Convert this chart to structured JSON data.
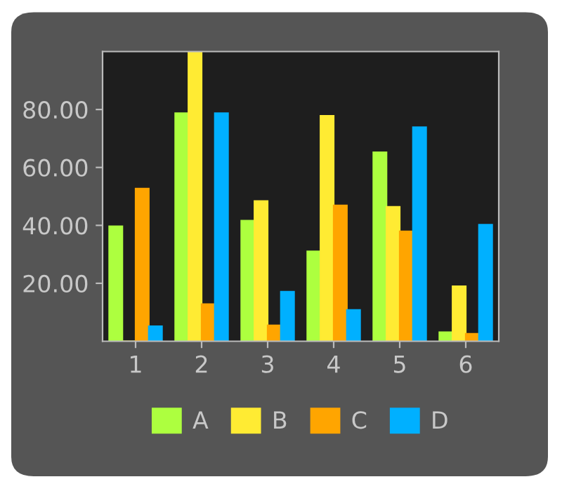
{
  "chart_data": {
    "type": "bar",
    "categories": [
      "1",
      "2",
      "3",
      "4",
      "5",
      "6"
    ],
    "series": [
      {
        "name": "A",
        "color": "#adff3f",
        "values": [
          39.7,
          78.7,
          41.6,
          31,
          65.2,
          3.1
        ]
      },
      {
        "name": "B",
        "color": "#ffeb33",
        "values": [
          0,
          100,
          48.4,
          77.8,
          46.4,
          19
        ]
      },
      {
        "name": "C",
        "color": "#ffa500",
        "values": [
          52.7,
          12.8,
          5.5,
          46.9,
          37.9,
          2.6
        ]
      },
      {
        "name": "D",
        "color": "#00b0ff",
        "values": [
          5.2,
          78.7,
          17.1,
          10.8,
          73.9,
          40.2
        ]
      }
    ],
    "ylim": [
      0,
      100
    ],
    "yticks": [
      {
        "value": 20,
        "label": "20.00"
      },
      {
        "value": 40,
        "label": "40.00"
      },
      {
        "value": 60,
        "label": "60.00"
      },
      {
        "value": 80,
        "label": "80.00"
      }
    ],
    "grid": false,
    "legend": "bottom"
  }
}
